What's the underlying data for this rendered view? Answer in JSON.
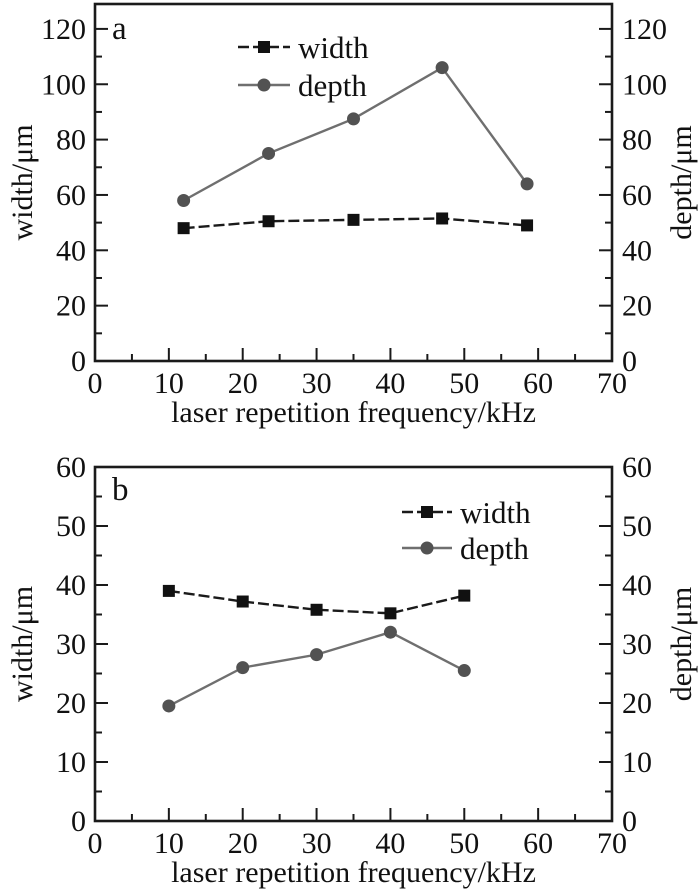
{
  "figure": {
    "background": "#ffffff",
    "text_color": "#111111",
    "axis_color": "#1a1a1a"
  },
  "chart_data": [
    {
      "id": "a",
      "type": "line",
      "panel_label": "a",
      "xlabel": "laser repetition frequency/kHz",
      "ylabel_left": "width/μm",
      "ylabel_right": "depth/μm",
      "xlim": [
        0,
        70
      ],
      "ylim": [
        0,
        120
      ],
      "x_ticks": [
        0,
        10,
        20,
        30,
        40,
        50,
        60,
        70
      ],
      "x_minor_step": 5,
      "y_ticks": [
        0,
        20,
        40,
        60,
        80,
        100,
        120
      ],
      "y_minor_step": 10,
      "grid": false,
      "legend": {
        "position": "inside-top-center",
        "entries": [
          "width",
          "depth"
        ]
      },
      "series": [
        {
          "name": "width",
          "marker": "square",
          "line_style": "dashed",
          "line_color": "#1a1a1a",
          "marker_color": "#111111",
          "x": [
            12,
            23.5,
            35,
            47,
            58.5
          ],
          "y": [
            48,
            50.5,
            51,
            51.5,
            49
          ]
        },
        {
          "name": "depth",
          "marker": "circle",
          "line_style": "solid",
          "line_color": "#6f6f6f",
          "marker_color": "#525252",
          "x": [
            12,
            23.5,
            35,
            47,
            58.5
          ],
          "y": [
            58,
            75,
            87.5,
            106,
            64
          ]
        }
      ]
    },
    {
      "id": "b",
      "type": "line",
      "panel_label": "b",
      "xlabel": "laser repetition frequency/kHz",
      "ylabel_left": "width/μm",
      "ylabel_right": "depth/μm",
      "xlim": [
        0,
        70
      ],
      "ylim": [
        0,
        60
      ],
      "x_ticks": [
        0,
        10,
        20,
        30,
        40,
        50,
        60,
        70
      ],
      "x_minor_step": 5,
      "y_ticks": [
        0,
        10,
        20,
        30,
        40,
        50,
        60
      ],
      "y_minor_step": 5,
      "grid": false,
      "legend": {
        "position": "inside-top-right",
        "entries": [
          "width",
          "depth"
        ]
      },
      "series": [
        {
          "name": "width",
          "marker": "square",
          "line_style": "dashed",
          "line_color": "#1a1a1a",
          "marker_color": "#111111",
          "x": [
            10,
            20,
            30,
            40,
            50
          ],
          "y": [
            39,
            37.2,
            35.8,
            35.2,
            38.2
          ]
        },
        {
          "name": "depth",
          "marker": "circle",
          "line_style": "solid",
          "line_color": "#6f6f6f",
          "marker_color": "#525252",
          "x": [
            10,
            20,
            30,
            40,
            50
          ],
          "y": [
            19.5,
            26,
            28.2,
            32,
            25.5
          ]
        }
      ]
    }
  ]
}
